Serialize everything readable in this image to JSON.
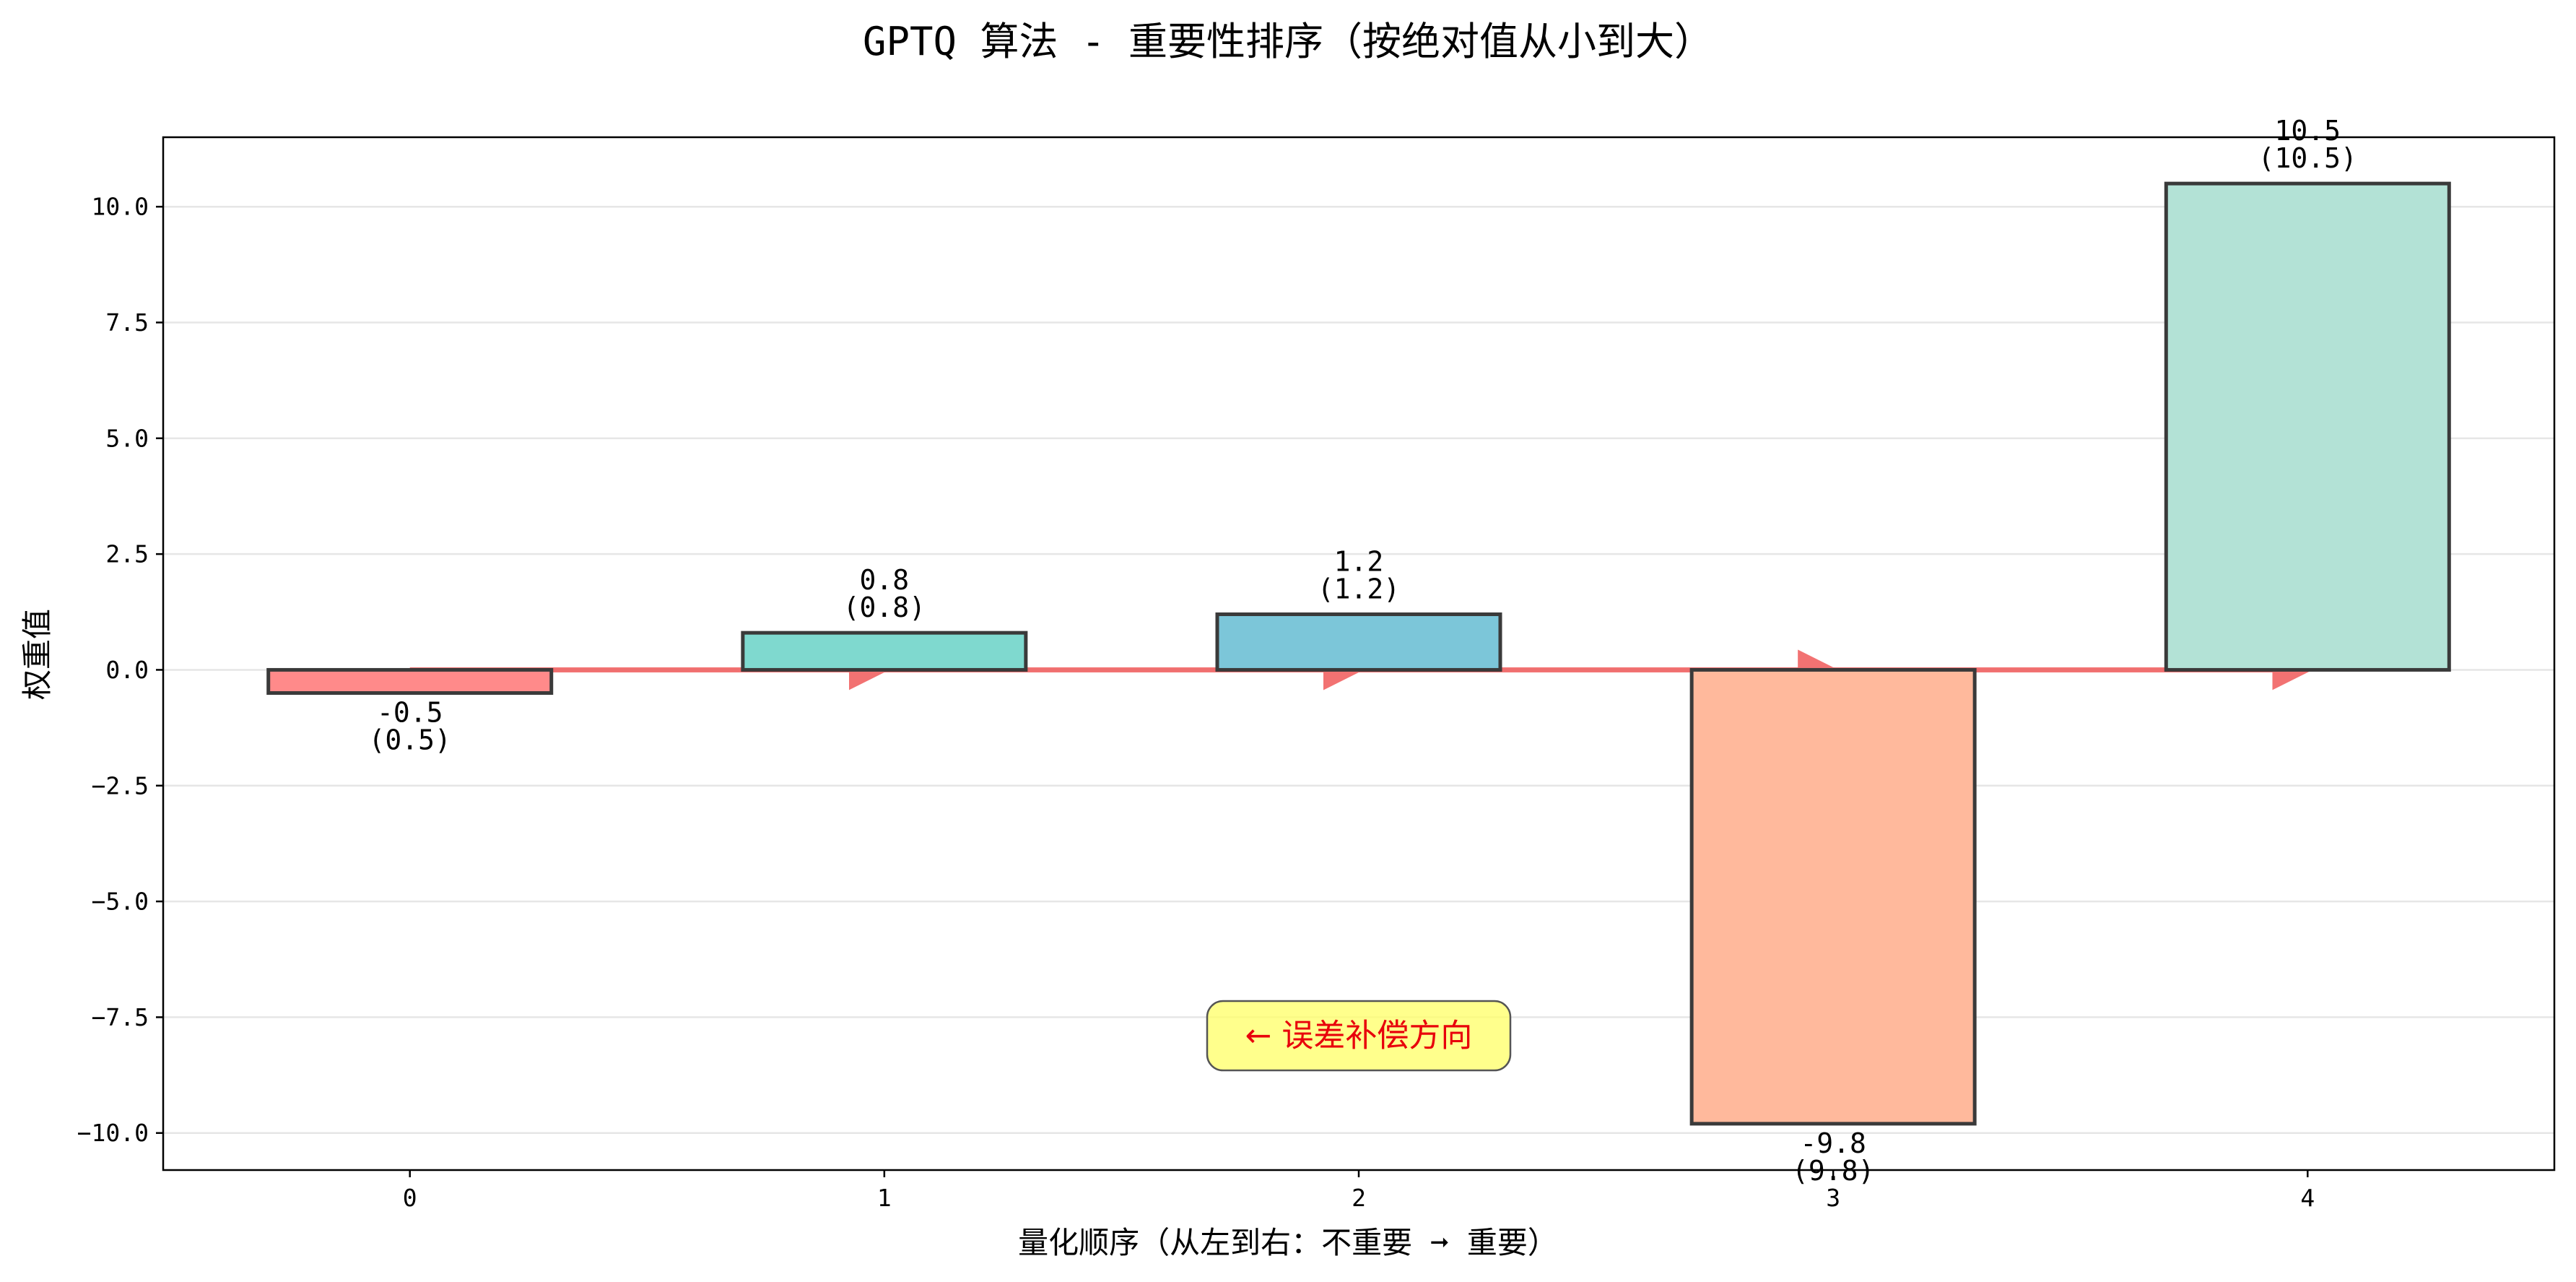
{
  "chart_data": {
    "type": "bar",
    "title": "GPTQ 算法 - 重要性排序（按绝对值从小到大）",
    "xlabel": "量化顺序（从左到右：不重要 ➞ 重要）",
    "ylabel": "权重值",
    "categories": [
      "0",
      "1",
      "2",
      "3",
      "4"
    ],
    "values": [
      -0.5,
      0.8,
      1.2,
      -9.8,
      10.5
    ],
    "value_labels": [
      "-0.5",
      "0.8",
      "1.2",
      "-9.8",
      "10.5"
    ],
    "abs_labels": [
      "(0.5)",
      "(0.8)",
      "(1.2)",
      "(9.8)",
      "(10.5)"
    ],
    "bar_colors": [
      "#ff8a8a",
      "#7fd9cf",
      "#7cc6d9",
      "#ffb99c",
      "#b3e2d6"
    ],
    "ylim": [
      -10.8,
      11.5
    ],
    "yticks": [
      -10.0,
      -7.5,
      -5.0,
      -2.5,
      0.0,
      2.5,
      5.0,
      7.5,
      10.0
    ],
    "ytick_labels": [
      "−10.0",
      "−7.5",
      "−5.0",
      "−2.5",
      "0.0",
      "2.5",
      "5.0",
      "7.5",
      "10.0"
    ],
    "xlim": [
      -0.52,
      4.52
    ],
    "grid": "horizontal",
    "arrow_color": "#f05a5a",
    "annotation": {
      "text": "← 误差补偿方向",
      "x": 2.0,
      "y": -7.9,
      "box_color": "#ffff66"
    }
  }
}
